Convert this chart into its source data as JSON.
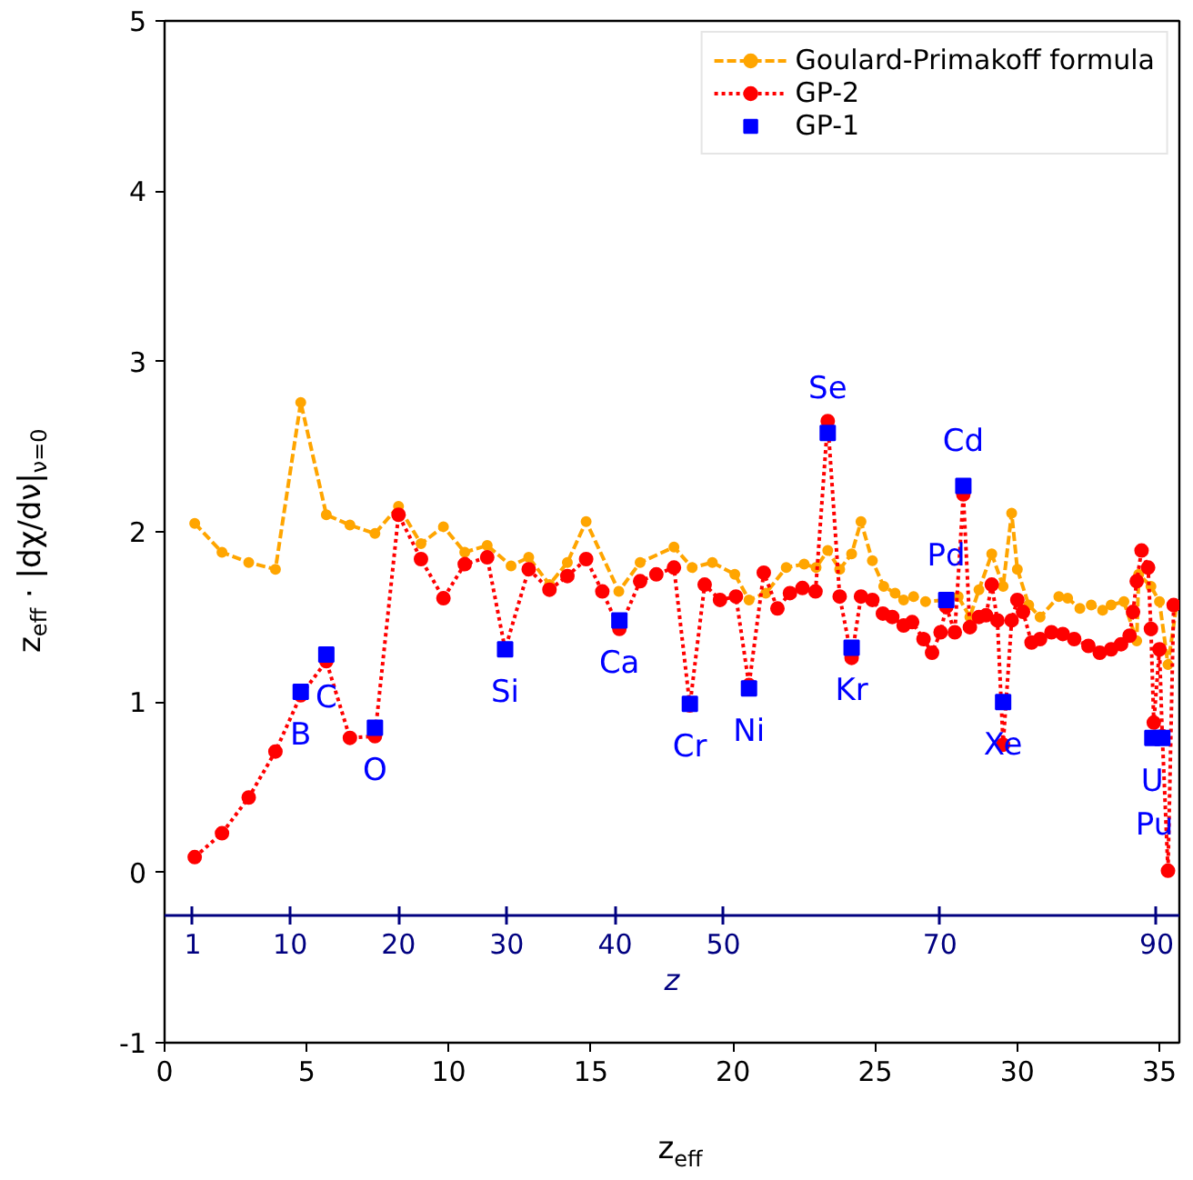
{
  "chart_data": {
    "type": "line",
    "xlabel": "z$_{eff}$",
    "ylabel": "z$_{eff}$ · |dχ/dν|$_{ν=0}$",
    "xlim": [
      0,
      35.7
    ],
    "ylim": [
      -1,
      5
    ],
    "xticks": [
      0,
      5,
      10,
      15,
      20,
      25,
      30,
      35
    ],
    "yticks": [
      -1,
      0,
      1,
      2,
      3,
      4,
      5
    ],
    "x2label": "z",
    "x2lim": [
      -1.6,
      92.1
    ],
    "x2ticks": [
      1,
      10,
      20,
      30,
      40,
      50,
      70,
      90
    ],
    "grid": false,
    "legend": "top right",
    "series": [
      {
        "name": "Goulard-Primakoff formula",
        "color": "#ffa500",
        "line_style": "dashed",
        "marker": "circle",
        "x": [
          1.06,
          2.02,
          2.96,
          3.9,
          4.79,
          5.69,
          6.52,
          7.4,
          8.23,
          9.02,
          9.81,
          10.56,
          11.35,
          12.19,
          12.81,
          13.54,
          14.17,
          14.83,
          15.98,
          16.73,
          17.92,
          18.56,
          19.27,
          20.06,
          20.56,
          21.15,
          21.87,
          22.5,
          22.92,
          23.33,
          23.75,
          24.17,
          24.5,
          24.9,
          25.3,
          25.7,
          26.0,
          26.35,
          26.77,
          27.5,
          27.92,
          28.33,
          28.65,
          29.1,
          29.5,
          29.8,
          30.0,
          30.4,
          30.8,
          31.46,
          31.77,
          32.2,
          32.6,
          33.0,
          33.3,
          33.75,
          34.2,
          34.27,
          34.7,
          35.0,
          35.3,
          35.6
        ],
        "values": [
          2.05,
          1.88,
          1.82,
          1.78,
          2.76,
          2.1,
          2.04,
          1.99,
          2.15,
          1.93,
          2.03,
          1.88,
          1.92,
          1.8,
          1.85,
          1.69,
          1.82,
          2.06,
          1.65,
          1.82,
          1.91,
          1.79,
          1.82,
          1.75,
          1.6,
          1.64,
          1.79,
          1.81,
          1.79,
          1.89,
          1.78,
          1.87,
          2.06,
          1.83,
          1.68,
          1.64,
          1.6,
          1.62,
          1.59,
          1.6,
          1.62,
          1.5,
          1.66,
          1.87,
          1.68,
          2.11,
          1.78,
          1.57,
          1.5,
          1.62,
          1.61,
          1.55,
          1.57,
          1.54,
          1.57,
          1.59,
          1.36,
          1.75,
          1.68,
          1.59,
          1.22,
          1.57
        ]
      },
      {
        "name": "GP-2",
        "color": "#ff0000",
        "line_style": "dotted",
        "marker": "circle",
        "x": [
          1.06,
          2.02,
          2.96,
          3.9,
          4.79,
          5.69,
          6.52,
          7.4,
          8.23,
          9.02,
          9.81,
          10.56,
          11.35,
          11.98,
          12.81,
          13.54,
          14.17,
          14.83,
          15.4,
          16.0,
          16.73,
          17.3,
          17.92,
          18.48,
          19.0,
          19.54,
          20.1,
          20.56,
          21.08,
          21.56,
          22.0,
          22.44,
          22.9,
          23.33,
          23.75,
          24.17,
          24.5,
          24.9,
          25.27,
          25.6,
          26.0,
          26.3,
          26.7,
          27.0,
          27.3,
          27.5,
          27.8,
          28.1,
          28.33,
          28.65,
          28.9,
          29.1,
          29.3,
          29.5,
          29.8,
          30.0,
          30.2,
          30.5,
          30.8,
          31.2,
          31.6,
          32.0,
          32.5,
          32.9,
          33.3,
          33.65,
          33.95,
          34.07,
          34.2,
          34.37,
          34.6,
          34.7,
          34.8,
          35.0,
          35.1,
          35.3,
          35.5
        ],
        "values": [
          0.09,
          0.23,
          0.44,
          0.71,
          1.04,
          1.24,
          0.79,
          0.8,
          2.1,
          1.84,
          1.61,
          1.81,
          1.85,
          1.31,
          1.78,
          1.66,
          1.74,
          1.84,
          1.65,
          1.43,
          1.71,
          1.75,
          1.79,
          0.98,
          1.69,
          1.6,
          1.62,
          1.1,
          1.76,
          1.55,
          1.64,
          1.67,
          1.65,
          2.65,
          1.62,
          1.26,
          1.62,
          1.6,
          1.52,
          1.5,
          1.45,
          1.47,
          1.37,
          1.29,
          1.41,
          1.56,
          1.41,
          2.22,
          1.44,
          1.5,
          1.51,
          1.69,
          1.48,
          0.75,
          1.48,
          1.6,
          1.53,
          1.35,
          1.37,
          1.41,
          1.4,
          1.37,
          1.33,
          1.29,
          1.31,
          1.34,
          1.39,
          1.53,
          1.71,
          1.89,
          1.79,
          1.43,
          0.88,
          1.31,
          0.8,
          0.01,
          1.57
        ]
      },
      {
        "name": "GP-1",
        "type": "scatter",
        "color": "#0000ff",
        "marker": "square",
        "x": [
          4.79,
          5.69,
          7.4,
          11.98,
          16.0,
          18.48,
          20.56,
          23.33,
          24.17,
          27.5,
          28.1,
          29.5,
          34.75,
          35.1
        ],
        "values": [
          1.06,
          1.28,
          0.85,
          1.31,
          1.48,
          0.99,
          1.08,
          2.58,
          1.32,
          1.6,
          2.27,
          1.0,
          0.79,
          0.79
        ]
      }
    ],
    "annotations": [
      {
        "text": "B",
        "x": 4.79,
        "y": 1.06
      },
      {
        "text": "C",
        "x": 5.69,
        "y": 1.28
      },
      {
        "text": "O",
        "x": 7.4,
        "y": 0.85
      },
      {
        "text": "Si",
        "x": 11.98,
        "y": 1.31
      },
      {
        "text": "Ca",
        "x": 16.0,
        "y": 1.48
      },
      {
        "text": "Cr",
        "x": 18.48,
        "y": 0.99
      },
      {
        "text": "Ni",
        "x": 20.56,
        "y": 1.08
      },
      {
        "text": "Se",
        "x": 23.33,
        "y": 2.58
      },
      {
        "text": "Kr",
        "x": 24.17,
        "y": 1.32
      },
      {
        "text": "Pd",
        "x": 27.5,
        "y": 1.6
      },
      {
        "text": "Cd",
        "x": 28.1,
        "y": 2.27
      },
      {
        "text": "Xe",
        "x": 29.5,
        "y": 1.0
      },
      {
        "text": "U",
        "x": 34.75,
        "y": 0.79
      },
      {
        "text": "Pu",
        "x": 35.1,
        "y": 0.79
      }
    ]
  }
}
